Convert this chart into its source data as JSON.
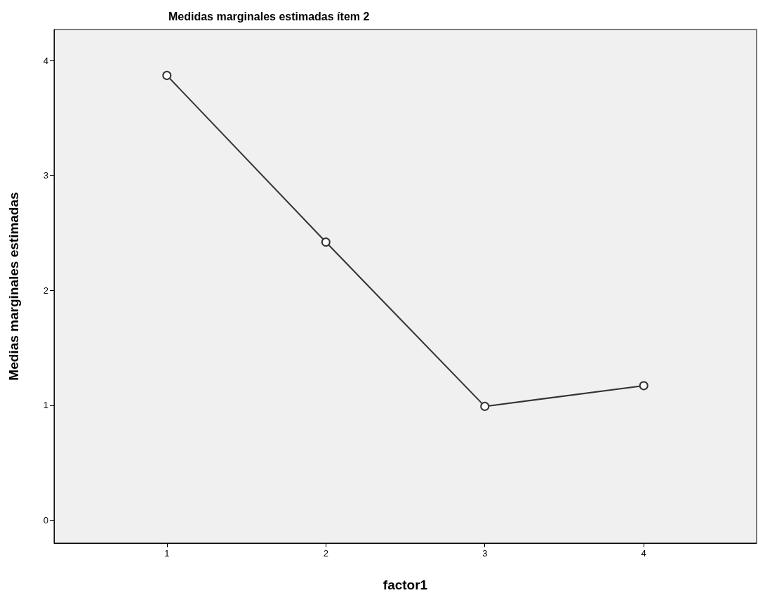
{
  "chart_data": {
    "type": "line",
    "title": "Medidas marginales estimadas ítem 2",
    "xlabel": "factor1",
    "ylabel": "Medias marginales estimadas",
    "x": [
      1,
      2,
      3,
      4
    ],
    "series": [
      {
        "color": "#333333",
        "values": [
          3.87,
          2.42,
          0.99,
          1.17
        ]
      }
    ],
    "xlim": [
      0.29,
      4.71
    ],
    "xticks": [
      1,
      2,
      3,
      4
    ],
    "ylim": [
      -0.2,
      4.27
    ],
    "yticks": [
      0,
      1,
      2,
      3,
      4
    ],
    "grid": false,
    "marker": "circle",
    "line_style": "solid"
  }
}
